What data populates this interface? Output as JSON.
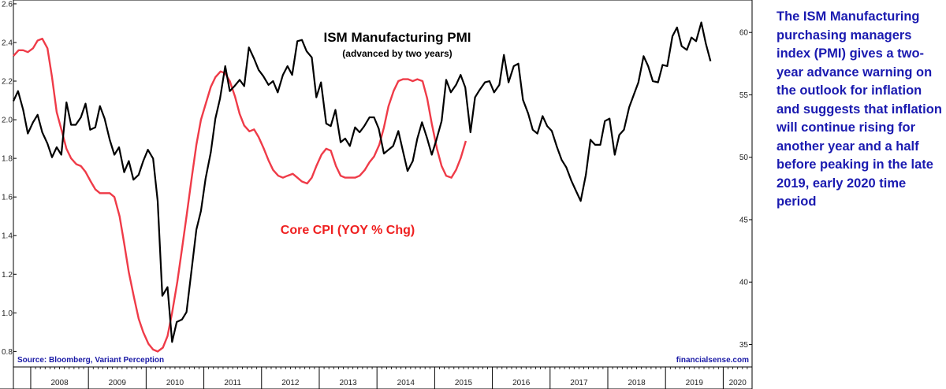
{
  "chart_data": {
    "type": "line",
    "title": "ISM Manufacturing PMI",
    "subtitle": "(advanced by two years)",
    "left_axis": {
      "ticks": [
        0.8,
        1.0,
        1.2,
        1.4,
        1.6,
        1.8,
        2.0,
        2.2,
        2.4,
        2.6
      ],
      "ylim": [
        0.72,
        2.62
      ]
    },
    "right_axis": {
      "ticks": [
        35,
        40,
        45,
        50,
        55,
        60
      ],
      "ylim": [
        33.2,
        62.6
      ]
    },
    "x_axis": {
      "labels": [
        "2008",
        "2009",
        "2010",
        "2011",
        "2012",
        "2013",
        "2014",
        "2015",
        "2016",
        "2017",
        "2018",
        "2019",
        "2020"
      ],
      "xlim": [
        2007.7,
        2020.5
      ]
    },
    "series": [
      {
        "name": "ISM Manufacturing PMI",
        "axis": "right",
        "color": "#000000",
        "points": [
          [
            2007.7,
            54.5
          ],
          [
            2007.78,
            55.3
          ],
          [
            2007.87,
            53.8
          ],
          [
            2007.95,
            51.9
          ],
          [
            2008.04,
            52.8
          ],
          [
            2008.12,
            53.4
          ],
          [
            2008.2,
            52.0
          ],
          [
            2008.29,
            51.1
          ],
          [
            2008.37,
            50.0
          ],
          [
            2008.45,
            50.8
          ],
          [
            2008.53,
            50.2
          ],
          [
            2008.62,
            54.4
          ],
          [
            2008.7,
            52.6
          ],
          [
            2008.78,
            52.6
          ],
          [
            2008.87,
            53.2
          ],
          [
            2008.95,
            54.3
          ],
          [
            2009.03,
            52.2
          ],
          [
            2009.12,
            52.4
          ],
          [
            2009.2,
            54.1
          ],
          [
            2009.28,
            53.1
          ],
          [
            2009.37,
            51.4
          ],
          [
            2009.45,
            50.2
          ],
          [
            2009.53,
            50.8
          ],
          [
            2009.62,
            48.8
          ],
          [
            2009.7,
            49.7
          ],
          [
            2009.78,
            48.2
          ],
          [
            2009.87,
            48.6
          ],
          [
            2009.95,
            49.7
          ],
          [
            2010.03,
            50.6
          ],
          [
            2010.12,
            49.9
          ],
          [
            2010.2,
            46.5
          ],
          [
            2010.28,
            38.9
          ],
          [
            2010.37,
            39.6
          ],
          [
            2010.45,
            35.2
          ],
          [
            2010.53,
            36.8
          ],
          [
            2010.62,
            37.0
          ],
          [
            2010.7,
            37.6
          ],
          [
            2010.78,
            40.7
          ],
          [
            2010.87,
            44.2
          ],
          [
            2010.95,
            45.7
          ],
          [
            2011.03,
            48.3
          ],
          [
            2011.12,
            50.4
          ],
          [
            2011.2,
            53.1
          ],
          [
            2011.28,
            54.7
          ],
          [
            2011.37,
            57.3
          ],
          [
            2011.45,
            55.3
          ],
          [
            2011.53,
            55.7
          ],
          [
            2011.62,
            56.2
          ],
          [
            2011.7,
            55.7
          ],
          [
            2011.78,
            58.8
          ],
          [
            2011.87,
            57.9
          ],
          [
            2011.95,
            57.0
          ],
          [
            2012.03,
            56.5
          ],
          [
            2012.12,
            55.8
          ],
          [
            2012.2,
            56.1
          ],
          [
            2012.28,
            55.2
          ],
          [
            2012.37,
            56.6
          ],
          [
            2012.45,
            57.3
          ],
          [
            2012.53,
            56.6
          ],
          [
            2012.62,
            59.3
          ],
          [
            2012.7,
            59.4
          ],
          [
            2012.78,
            58.5
          ],
          [
            2012.87,
            58.0
          ],
          [
            2012.95,
            54.8
          ],
          [
            2013.03,
            56.0
          ],
          [
            2013.12,
            52.7
          ],
          [
            2013.2,
            52.5
          ],
          [
            2013.28,
            53.8
          ],
          [
            2013.37,
            51.2
          ],
          [
            2013.45,
            51.5
          ],
          [
            2013.53,
            50.9
          ],
          [
            2013.62,
            52.4
          ],
          [
            2013.7,
            52.0
          ],
          [
            2013.78,
            52.5
          ],
          [
            2013.87,
            53.2
          ],
          [
            2013.95,
            53.2
          ],
          [
            2014.03,
            52.3
          ],
          [
            2014.12,
            50.3
          ],
          [
            2014.2,
            50.6
          ],
          [
            2014.28,
            50.9
          ],
          [
            2014.37,
            52.1
          ],
          [
            2014.45,
            50.5
          ],
          [
            2014.53,
            48.9
          ],
          [
            2014.62,
            49.7
          ],
          [
            2014.7,
            51.5
          ],
          [
            2014.78,
            52.8
          ],
          [
            2014.87,
            51.5
          ],
          [
            2014.95,
            50.2
          ],
          [
            2015.03,
            51.4
          ],
          [
            2015.12,
            52.9
          ],
          [
            2015.2,
            56.2
          ],
          [
            2015.28,
            55.2
          ],
          [
            2015.37,
            55.8
          ],
          [
            2015.45,
            56.6
          ],
          [
            2015.53,
            55.6
          ],
          [
            2015.62,
            52.0
          ],
          [
            2015.7,
            54.8
          ],
          [
            2015.78,
            55.4
          ],
          [
            2015.87,
            56.0
          ],
          [
            2015.95,
            56.1
          ],
          [
            2016.03,
            55.2
          ],
          [
            2016.12,
            55.8
          ],
          [
            2016.2,
            58.2
          ],
          [
            2016.28,
            56.0
          ],
          [
            2016.37,
            57.3
          ],
          [
            2016.45,
            57.5
          ],
          [
            2016.53,
            54.6
          ],
          [
            2016.62,
            53.5
          ],
          [
            2016.7,
            52.2
          ],
          [
            2016.78,
            51.9
          ],
          [
            2016.87,
            53.3
          ],
          [
            2016.95,
            52.5
          ],
          [
            2017.03,
            52.1
          ],
          [
            2017.12,
            50.8
          ],
          [
            2017.2,
            49.8
          ],
          [
            2017.28,
            49.2
          ],
          [
            2017.37,
            48.1
          ],
          [
            2017.45,
            47.3
          ],
          [
            2017.53,
            46.5
          ],
          [
            2017.62,
            48.6
          ],
          [
            2017.7,
            51.4
          ],
          [
            2017.78,
            51.0
          ],
          [
            2017.87,
            51.0
          ],
          [
            2017.95,
            52.9
          ],
          [
            2018.03,
            53.1
          ],
          [
            2018.12,
            50.2
          ],
          [
            2018.2,
            51.8
          ],
          [
            2018.28,
            52.2
          ],
          [
            2018.37,
            54.0
          ],
          [
            2018.45,
            55.0
          ],
          [
            2018.53,
            56.0
          ],
          [
            2018.62,
            58.1
          ],
          [
            2018.7,
            57.3
          ],
          [
            2018.78,
            56.1
          ],
          [
            2018.87,
            56.0
          ],
          [
            2018.95,
            57.4
          ],
          [
            2019.03,
            57.3
          ],
          [
            2019.12,
            59.7
          ],
          [
            2019.2,
            60.4
          ],
          [
            2019.28,
            58.9
          ],
          [
            2019.37,
            58.6
          ],
          [
            2019.45,
            59.6
          ],
          [
            2019.53,
            59.3
          ],
          [
            2019.62,
            60.8
          ],
          [
            2019.7,
            59.1
          ],
          [
            2019.78,
            57.7
          ]
        ]
      },
      {
        "name": "Core CPI (YOY % Chg)",
        "axis": "left",
        "color": "#ef3b48",
        "points": [
          [
            2007.7,
            2.33
          ],
          [
            2007.79,
            2.36
          ],
          [
            2007.87,
            2.36
          ],
          [
            2007.95,
            2.35
          ],
          [
            2008.04,
            2.37
          ],
          [
            2008.12,
            2.41
          ],
          [
            2008.2,
            2.42
          ],
          [
            2008.29,
            2.37
          ],
          [
            2008.37,
            2.22
          ],
          [
            2008.45,
            2.04
          ],
          [
            2008.54,
            1.94
          ],
          [
            2008.62,
            1.85
          ],
          [
            2008.7,
            1.8
          ],
          [
            2008.79,
            1.77
          ],
          [
            2008.87,
            1.76
          ],
          [
            2008.95,
            1.73
          ],
          [
            2009.04,
            1.68
          ],
          [
            2009.12,
            1.64
          ],
          [
            2009.2,
            1.62
          ],
          [
            2009.29,
            1.62
          ],
          [
            2009.37,
            1.62
          ],
          [
            2009.45,
            1.6
          ],
          [
            2009.54,
            1.5
          ],
          [
            2009.62,
            1.36
          ],
          [
            2009.7,
            1.21
          ],
          [
            2009.79,
            1.08
          ],
          [
            2009.87,
            0.97
          ],
          [
            2009.95,
            0.9
          ],
          [
            2010.04,
            0.84
          ],
          [
            2010.12,
            0.81
          ],
          [
            2010.2,
            0.8
          ],
          [
            2010.29,
            0.82
          ],
          [
            2010.37,
            0.88
          ],
          [
            2010.45,
            1.0
          ],
          [
            2010.54,
            1.16
          ],
          [
            2010.62,
            1.33
          ],
          [
            2010.7,
            1.5
          ],
          [
            2010.79,
            1.7
          ],
          [
            2010.87,
            1.87
          ],
          [
            2010.95,
            2.0
          ],
          [
            2011.04,
            2.09
          ],
          [
            2011.12,
            2.17
          ],
          [
            2011.2,
            2.22
          ],
          [
            2011.29,
            2.25
          ],
          [
            2011.37,
            2.24
          ],
          [
            2011.45,
            2.2
          ],
          [
            2011.54,
            2.12
          ],
          [
            2011.62,
            2.03
          ],
          [
            2011.7,
            1.97
          ],
          [
            2011.79,
            1.94
          ],
          [
            2011.87,
            1.95
          ],
          [
            2011.95,
            1.91
          ],
          [
            2012.04,
            1.85
          ],
          [
            2012.12,
            1.79
          ],
          [
            2012.2,
            1.74
          ],
          [
            2012.29,
            1.71
          ],
          [
            2012.37,
            1.7
          ],
          [
            2012.45,
            1.71
          ],
          [
            2012.54,
            1.72
          ],
          [
            2012.62,
            1.7
          ],
          [
            2012.7,
            1.68
          ],
          [
            2012.79,
            1.67
          ],
          [
            2012.87,
            1.7
          ],
          [
            2012.95,
            1.76
          ],
          [
            2013.04,
            1.82
          ],
          [
            2013.12,
            1.85
          ],
          [
            2013.2,
            1.84
          ],
          [
            2013.29,
            1.76
          ],
          [
            2013.37,
            1.71
          ],
          [
            2013.45,
            1.7
          ],
          [
            2013.54,
            1.7
          ],
          [
            2013.62,
            1.7
          ],
          [
            2013.7,
            1.71
          ],
          [
            2013.79,
            1.74
          ],
          [
            2013.87,
            1.78
          ],
          [
            2013.95,
            1.81
          ],
          [
            2014.04,
            1.87
          ],
          [
            2014.12,
            1.96
          ],
          [
            2014.2,
            2.07
          ],
          [
            2014.29,
            2.15
          ],
          [
            2014.37,
            2.2
          ],
          [
            2014.45,
            2.21
          ],
          [
            2014.54,
            2.21
          ],
          [
            2014.62,
            2.2
          ],
          [
            2014.7,
            2.21
          ],
          [
            2014.79,
            2.2
          ],
          [
            2014.87,
            2.11
          ],
          [
            2014.95,
            1.98
          ],
          [
            2015.04,
            1.85
          ],
          [
            2015.12,
            1.76
          ],
          [
            2015.2,
            1.71
          ],
          [
            2015.29,
            1.7
          ],
          [
            2015.37,
            1.74
          ],
          [
            2015.45,
            1.8
          ],
          [
            2015.54,
            1.89
          ]
        ],
        "x_offset_note_removed": true
      }
    ],
    "annotations": [
      "Core CPI (YOY % Chg)"
    ],
    "source": "Source: Bloomberg, Variant Perception",
    "brand": "financialsense.com"
  },
  "annotation_text": "The ISM Manufacturing purchasing managers index (PMI) gives a two-year advance warning on the outlook for inflation and suggests that inflation will continue rising for another year and a half before peaking in the late 2019, early 2020 time period"
}
